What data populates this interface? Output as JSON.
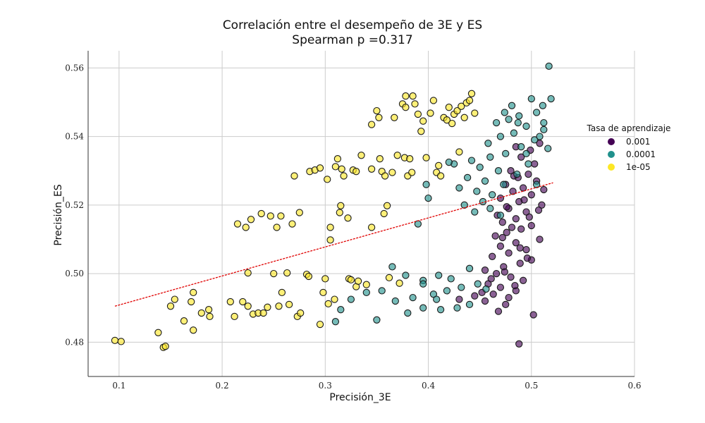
{
  "chart_data": {
    "type": "scatter",
    "title": "Correlación entre el desempeño de 3E y ES",
    "subtitle": "Spearman p =0.317",
    "xlabel": "Precisión_3E",
    "ylabel": "Precisión_ES",
    "xlim": [
      0.07,
      0.6
    ],
    "ylim": [
      0.47,
      0.565
    ],
    "xticks": [
      0.1,
      0.2,
      0.3,
      0.4,
      0.5,
      0.6
    ],
    "xtick_labels": [
      "0.1",
      "0.2",
      "0.3",
      "0.4",
      "0.5",
      "0.6"
    ],
    "yticks": [
      0.48,
      0.5,
      0.52,
      0.54,
      0.56
    ],
    "ytick_labels": [
      "0.48",
      "0.50",
      "0.52",
      "0.54",
      "0.56"
    ],
    "grid": true,
    "legend": {
      "title": "Tasa de aprendizaje",
      "placement": "right"
    },
    "colors": {
      "0.001": "#440154",
      "0.0001": "#21918c",
      "1e-05": "#fde725",
      "trend": "#e00000"
    },
    "trendline": {
      "x": [
        0.096,
        0.521
      ],
      "y": [
        0.4905,
        0.5265
      ]
    },
    "series": [
      {
        "name": "0.001",
        "color": "#440154",
        "points": [
          [
            0.488,
            0.4795
          ],
          [
            0.502,
            0.488
          ],
          [
            0.468,
            0.489
          ],
          [
            0.475,
            0.491
          ],
          [
            0.455,
            0.492
          ],
          [
            0.478,
            0.493
          ],
          [
            0.463,
            0.494
          ],
          [
            0.485,
            0.495
          ],
          [
            0.47,
            0.496
          ],
          [
            0.458,
            0.497
          ],
          [
            0.492,
            0.498
          ],
          [
            0.48,
            0.499
          ],
          [
            0.466,
            0.5
          ],
          [
            0.455,
            0.501
          ],
          [
            0.473,
            0.502
          ],
          [
            0.489,
            0.503
          ],
          [
            0.5,
            0.504
          ],
          [
            0.462,
            0.505
          ],
          [
            0.478,
            0.506
          ],
          [
            0.495,
            0.507
          ],
          [
            0.47,
            0.508
          ],
          [
            0.485,
            0.509
          ],
          [
            0.508,
            0.51
          ],
          [
            0.465,
            0.511
          ],
          [
            0.476,
            0.512
          ],
          [
            0.49,
            0.513
          ],
          [
            0.5,
            0.514
          ],
          [
            0.472,
            0.515
          ],
          [
            0.485,
            0.516
          ],
          [
            0.467,
            0.517
          ],
          [
            0.495,
            0.518
          ],
          [
            0.478,
            0.519
          ],
          [
            0.51,
            0.52
          ],
          [
            0.488,
            0.521
          ],
          [
            0.47,
            0.522
          ],
          [
            0.5,
            0.523
          ],
          [
            0.482,
            0.524
          ],
          [
            0.492,
            0.525
          ],
          [
            0.475,
            0.526
          ],
          [
            0.505,
            0.527
          ],
          [
            0.487,
            0.528
          ],
          [
            0.497,
            0.529
          ],
          [
            0.48,
            0.53
          ],
          [
            0.503,
            0.532
          ],
          [
            0.49,
            0.534
          ],
          [
            0.499,
            0.536
          ],
          [
            0.485,
            0.537
          ],
          [
            0.508,
            0.538
          ],
          [
            0.483,
            0.5285
          ],
          [
            0.493,
            0.5215
          ],
          [
            0.476,
            0.5195
          ],
          [
            0.498,
            0.5165
          ],
          [
            0.481,
            0.5135
          ],
          [
            0.472,
            0.5105
          ],
          [
            0.489,
            0.5075
          ],
          [
            0.496,
            0.5045
          ],
          [
            0.474,
            0.5005
          ],
          [
            0.461,
            0.4985
          ],
          [
            0.484,
            0.4965
          ],
          [
            0.452,
            0.4945
          ],
          [
            0.43,
            0.4925
          ],
          [
            0.445,
            0.4935
          ],
          [
            0.507,
            0.5185
          ],
          [
            0.512,
            0.5245
          ]
        ]
      },
      {
        "name": "0.0001",
        "color": "#21918c",
        "points": [
          [
            0.517,
            0.5605
          ],
          [
            0.5,
            0.551
          ],
          [
            0.519,
            0.551
          ],
          [
            0.511,
            0.549
          ],
          [
            0.505,
            0.547
          ],
          [
            0.488,
            0.546
          ],
          [
            0.478,
            0.545
          ],
          [
            0.466,
            0.544
          ],
          [
            0.495,
            0.543
          ],
          [
            0.512,
            0.542
          ],
          [
            0.483,
            0.541
          ],
          [
            0.47,
            0.54
          ],
          [
            0.503,
            0.539
          ],
          [
            0.458,
            0.538
          ],
          [
            0.49,
            0.537
          ],
          [
            0.516,
            0.5365
          ],
          [
            0.475,
            0.535
          ],
          [
            0.46,
            0.534
          ],
          [
            0.442,
            0.533
          ],
          [
            0.497,
            0.532
          ],
          [
            0.425,
            0.532
          ],
          [
            0.45,
            0.531
          ],
          [
            0.468,
            0.53
          ],
          [
            0.486,
            0.529
          ],
          [
            0.438,
            0.528
          ],
          [
            0.455,
            0.527
          ],
          [
            0.473,
            0.526
          ],
          [
            0.398,
            0.526
          ],
          [
            0.43,
            0.525
          ],
          [
            0.447,
            0.524
          ],
          [
            0.462,
            0.523
          ],
          [
            0.4,
            0.522
          ],
          [
            0.453,
            0.521
          ],
          [
            0.435,
            0.52
          ],
          [
            0.46,
            0.519
          ],
          [
            0.39,
            0.5145
          ],
          [
            0.445,
            0.518
          ],
          [
            0.47,
            0.517
          ],
          [
            0.487,
            0.544
          ],
          [
            0.474,
            0.547
          ],
          [
            0.481,
            0.549
          ],
          [
            0.35,
            0.4865
          ],
          [
            0.31,
            0.486
          ],
          [
            0.38,
            0.4885
          ],
          [
            0.395,
            0.49
          ],
          [
            0.412,
            0.4895
          ],
          [
            0.428,
            0.49
          ],
          [
            0.44,
            0.491
          ],
          [
            0.368,
            0.492
          ],
          [
            0.385,
            0.493
          ],
          [
            0.405,
            0.494
          ],
          [
            0.418,
            0.495
          ],
          [
            0.432,
            0.496
          ],
          [
            0.448,
            0.497
          ],
          [
            0.355,
            0.495
          ],
          [
            0.34,
            0.4945
          ],
          [
            0.325,
            0.4925
          ],
          [
            0.395,
            0.498
          ],
          [
            0.41,
            0.4995
          ],
          [
            0.378,
            0.4995
          ],
          [
            0.365,
            0.502
          ],
          [
            0.422,
            0.4985
          ],
          [
            0.395,
            0.497
          ],
          [
            0.408,
            0.4925
          ],
          [
            0.315,
            0.4895
          ],
          [
            0.44,
            0.5015
          ],
          [
            0.456,
            0.4955
          ],
          [
            0.505,
            0.526
          ],
          [
            0.495,
            0.535
          ],
          [
            0.512,
            0.544
          ],
          [
            0.508,
            0.54
          ],
          [
            0.42,
            0.5325
          ]
        ]
      },
      {
        "name": "1e-05",
        "color": "#fde725",
        "points": [
          [
            0.096,
            0.4805
          ],
          [
            0.102,
            0.4802
          ],
          [
            0.138,
            0.4828
          ],
          [
            0.143,
            0.4785
          ],
          [
            0.145,
            0.4788
          ],
          [
            0.15,
            0.4905
          ],
          [
            0.154,
            0.4925
          ],
          [
            0.17,
            0.4918
          ],
          [
            0.172,
            0.4945
          ],
          [
            0.172,
            0.4835
          ],
          [
            0.18,
            0.4885
          ],
          [
            0.187,
            0.4895
          ],
          [
            0.188,
            0.4875
          ],
          [
            0.208,
            0.4918
          ],
          [
            0.212,
            0.4875
          ],
          [
            0.215,
            0.5145
          ],
          [
            0.22,
            0.4918
          ],
          [
            0.223,
            0.5135
          ],
          [
            0.225,
            0.4905
          ],
          [
            0.228,
            0.5158
          ],
          [
            0.23,
            0.4882
          ],
          [
            0.235,
            0.4885
          ],
          [
            0.238,
            0.5175
          ],
          [
            0.244,
            0.4902
          ],
          [
            0.247,
            0.5168
          ],
          [
            0.25,
            0.5
          ],
          [
            0.253,
            0.5135
          ],
          [
            0.255,
            0.4905
          ],
          [
            0.257,
            0.5168
          ],
          [
            0.258,
            0.4945
          ],
          [
            0.263,
            0.5002
          ],
          [
            0.265,
            0.491
          ],
          [
            0.268,
            0.5145
          ],
          [
            0.27,
            0.5285
          ],
          [
            0.273,
            0.4875
          ],
          [
            0.275,
            0.5178
          ],
          [
            0.282,
            0.4998
          ],
          [
            0.284,
            0.4992
          ],
          [
            0.285,
            0.5298
          ],
          [
            0.29,
            0.5302
          ],
          [
            0.295,
            0.5308
          ],
          [
            0.298,
            0.4945
          ],
          [
            0.3,
            0.4985
          ],
          [
            0.302,
            0.5275
          ],
          [
            0.303,
            0.4912
          ],
          [
            0.305,
            0.5135
          ],
          [
            0.309,
            0.4925
          ],
          [
            0.31,
            0.5312
          ],
          [
            0.312,
            0.5335
          ],
          [
            0.314,
            0.5178
          ],
          [
            0.315,
            0.5198
          ],
          [
            0.316,
            0.5305
          ],
          [
            0.318,
            0.5285
          ],
          [
            0.322,
            0.5162
          ],
          [
            0.323,
            0.4985
          ],
          [
            0.325,
            0.4982
          ],
          [
            0.327,
            0.5302
          ],
          [
            0.33,
            0.4962
          ],
          [
            0.332,
            0.4978
          ],
          [
            0.335,
            0.5345
          ],
          [
            0.345,
            0.5135
          ],
          [
            0.35,
            0.5475
          ],
          [
            0.352,
            0.5455
          ],
          [
            0.353,
            0.5335
          ],
          [
            0.355,
            0.5298
          ],
          [
            0.357,
            0.5175
          ],
          [
            0.358,
            0.5285
          ],
          [
            0.36,
            0.5198
          ],
          [
            0.362,
            0.4988
          ],
          [
            0.365,
            0.5295
          ],
          [
            0.367,
            0.5455
          ],
          [
            0.37,
            0.5345
          ],
          [
            0.372,
            0.4972
          ],
          [
            0.375,
            0.5495
          ],
          [
            0.377,
            0.5338
          ],
          [
            0.378,
            0.5518
          ],
          [
            0.38,
            0.5285
          ],
          [
            0.382,
            0.5335
          ],
          [
            0.384,
            0.5295
          ],
          [
            0.387,
            0.5495
          ],
          [
            0.39,
            0.5465
          ],
          [
            0.393,
            0.5415
          ],
          [
            0.395,
            0.5445
          ],
          [
            0.398,
            0.5338
          ],
          [
            0.402,
            0.5468
          ],
          [
            0.405,
            0.5505
          ],
          [
            0.408,
            0.5295
          ],
          [
            0.41,
            0.5315
          ],
          [
            0.412,
            0.5285
          ],
          [
            0.415,
            0.5455
          ],
          [
            0.418,
            0.5448
          ],
          [
            0.42,
            0.5485
          ],
          [
            0.423,
            0.5438
          ],
          [
            0.425,
            0.5465
          ],
          [
            0.428,
            0.5475
          ],
          [
            0.43,
            0.5355
          ],
          [
            0.432,
            0.5488
          ],
          [
            0.435,
            0.5455
          ],
          [
            0.437,
            0.5498
          ],
          [
            0.44,
            0.5505
          ],
          [
            0.442,
            0.5525
          ],
          [
            0.345,
            0.5435
          ],
          [
            0.33,
            0.5298
          ],
          [
            0.305,
            0.5098
          ],
          [
            0.24,
            0.4885
          ],
          [
            0.225,
            0.5002
          ],
          [
            0.163,
            0.4862
          ],
          [
            0.295,
            0.4852
          ],
          [
            0.276,
            0.4885
          ],
          [
            0.34,
            0.4968
          ],
          [
            0.385,
            0.5518
          ],
          [
            0.345,
            0.5305
          ],
          [
            0.378,
            0.5485
          ],
          [
            0.445,
            0.5468
          ]
        ]
      }
    ]
  }
}
